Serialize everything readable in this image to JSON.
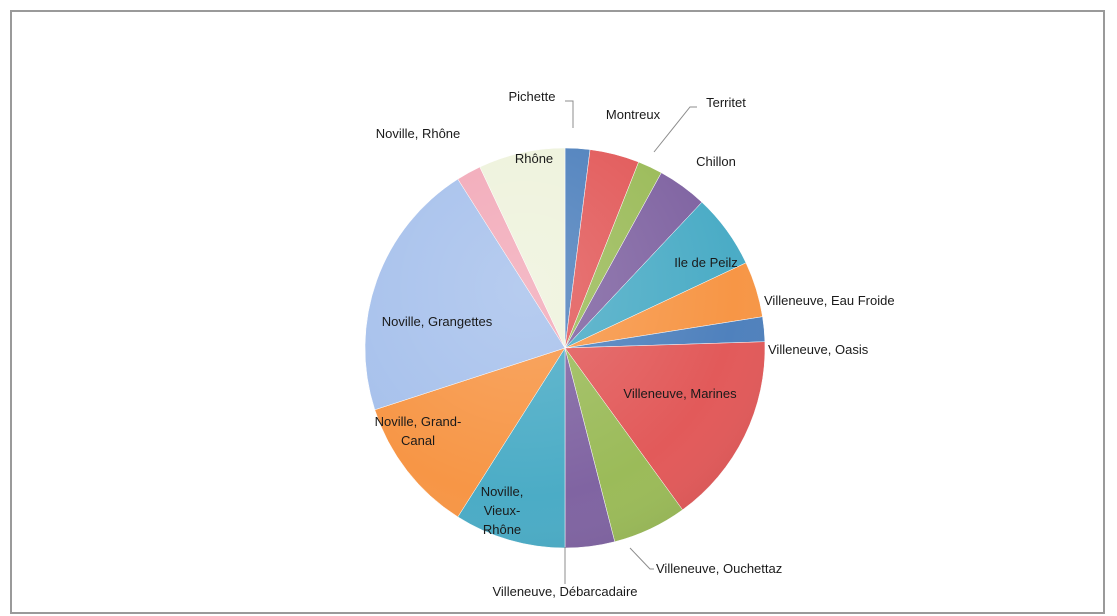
{
  "chart_data": {
    "type": "pie",
    "title": "",
    "slices": [
      {
        "label": "Pichette",
        "value": 2.0,
        "color": "#4f81bd"
      },
      {
        "label": "Montreux",
        "value": 4.0,
        "color": "#e25a5a"
      },
      {
        "label": "Territet",
        "value": 2.0,
        "color": "#9bbb59"
      },
      {
        "label": "Chillon",
        "value": 4.0,
        "color": "#8064a2"
      },
      {
        "label": "Ile de Peilz",
        "value": 6.0,
        "color": "#4bacc6"
      },
      {
        "label": "Villeneuve, Eau Froide",
        "value": 4.5,
        "color": "#f79646"
      },
      {
        "label": "Villeneuve, Oasis",
        "value": 2.0,
        "color": "#4f81bd"
      },
      {
        "label": "Villeneuve, Marines",
        "value": 15.5,
        "color": "#e25a5a"
      },
      {
        "label": "Villeneuve, Ouchettaz",
        "value": 6.0,
        "color": "#9bbb59"
      },
      {
        "label": "Villeneuve, Débarcadaire",
        "value": 4.0,
        "color": "#8064a2"
      },
      {
        "label": "Noville, Vieux-Rhône",
        "value": 9.0,
        "color": "#4bacc6"
      },
      {
        "label": "Noville, Grand-Canal",
        "value": 11.0,
        "color": "#f79646"
      },
      {
        "label": "Noville, Grangettes",
        "value": 21.0,
        "color": "#a7c1ec"
      },
      {
        "label": "Noville, Rhône",
        "value": 2.0,
        "color": "#f2aab9"
      },
      {
        "label": "Rhône",
        "value": 7.0,
        "color": "#eef2dc"
      }
    ]
  }
}
